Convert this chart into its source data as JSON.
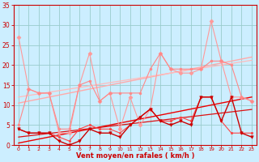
{
  "background_color": "#cceeff",
  "grid_color": "#99cccc",
  "xlabel": "Vent moyen/en rafales ( km/h )",
  "xlim": [
    -0.5,
    23.5
  ],
  "ylim": [
    0,
    35
  ],
  "yticks": [
    0,
    5,
    10,
    15,
    20,
    25,
    30,
    35
  ],
  "xticks": [
    0,
    1,
    2,
    3,
    4,
    5,
    6,
    7,
    8,
    9,
    10,
    11,
    12,
    13,
    14,
    15,
    16,
    17,
    18,
    19,
    20,
    21,
    22,
    23
  ],
  "lines": [
    {
      "x": [
        0,
        1,
        2,
        3,
        4,
        5,
        6,
        7,
        8,
        9,
        10,
        11,
        12,
        13,
        14,
        15,
        16,
        17,
        18,
        19,
        20,
        21,
        22,
        23
      ],
      "y": [
        27,
        14,
        13,
        13,
        3,
        3,
        15,
        23,
        11,
        13,
        4,
        12,
        5,
        9,
        23,
        19,
        18,
        18,
        19,
        31,
        21,
        12,
        12,
        11
      ],
      "color": "#ff9999",
      "lw": 0.8,
      "marker": "D",
      "ms": 2.5,
      "linestyle": "-",
      "zorder": 3
    },
    {
      "x": [
        0,
        1,
        2,
        3,
        4,
        5,
        6,
        7,
        8,
        9,
        10,
        11,
        12,
        13,
        14,
        15,
        16,
        17,
        18,
        19,
        20,
        21,
        22,
        23
      ],
      "y": [
        10.5,
        11.0,
        11.5,
        12.0,
        12.5,
        13.0,
        13.5,
        14.0,
        14.5,
        15.0,
        15.5,
        16.0,
        16.5,
        17.0,
        17.5,
        18.0,
        18.5,
        19.0,
        19.5,
        20.0,
        20.5,
        21.0,
        21.5,
        22.0
      ],
      "color": "#ffaaaa",
      "lw": 1.0,
      "marker": null,
      "ms": 0,
      "linestyle": "-",
      "zorder": 2
    },
    {
      "x": [
        0,
        1,
        2,
        3,
        4,
        5,
        6,
        7,
        8,
        9,
        10,
        11,
        12,
        13,
        14,
        15,
        16,
        17,
        18,
        19,
        20,
        21,
        22,
        23
      ],
      "y": [
        5,
        14,
        13,
        13,
        4,
        4,
        15,
        16,
        11,
        13,
        13,
        13,
        13,
        19,
        23,
        19,
        19,
        19,
        19,
        21,
        21,
        20,
        12,
        11
      ],
      "color": "#ff8888",
      "lw": 0.8,
      "marker": "o",
      "ms": 2,
      "linestyle": "-",
      "zorder": 3
    },
    {
      "x": [
        0,
        1,
        2,
        3,
        4,
        5,
        6,
        7,
        8,
        9,
        10,
        11,
        12,
        13,
        14,
        15,
        16,
        17,
        18,
        19,
        20,
        21,
        22,
        23
      ],
      "y": [
        12,
        12.4,
        12.8,
        13.2,
        13.6,
        14.0,
        14.4,
        14.8,
        15.2,
        15.6,
        16.0,
        16.4,
        16.8,
        17.2,
        17.6,
        18.0,
        18.4,
        18.8,
        19.2,
        19.6,
        20.0,
        20.4,
        20.8,
        21.2
      ],
      "color": "#ffbbbb",
      "lw": 0.9,
      "marker": null,
      "ms": 0,
      "linestyle": "-",
      "zorder": 2
    },
    {
      "x": [
        0,
        1,
        2,
        3,
        4,
        5,
        6,
        7,
        8,
        9,
        10,
        11,
        12,
        13,
        14,
        15,
        16,
        17,
        18,
        19,
        20,
        21,
        22,
        23
      ],
      "y": [
        4,
        3,
        3,
        3,
        1,
        0,
        1,
        4,
        3,
        3,
        2,
        5,
        7,
        9,
        6,
        5,
        6,
        5,
        12,
        12,
        6,
        12,
        3,
        2
      ],
      "color": "#cc0000",
      "lw": 1.0,
      "marker": "v",
      "ms": 2.5,
      "linestyle": "-",
      "zorder": 4
    },
    {
      "x": [
        0,
        1,
        2,
        3,
        4,
        5,
        6,
        7,
        8,
        9,
        10,
        11,
        12,
        13,
        14,
        15,
        16,
        17,
        18,
        19,
        20,
        21,
        22,
        23
      ],
      "y": [
        0.5,
        1.0,
        1.5,
        2.0,
        2.5,
        3.0,
        3.5,
        4.0,
        4.5,
        5.0,
        5.5,
        6.0,
        6.5,
        7.0,
        7.5,
        8.0,
        8.5,
        9.0,
        9.5,
        10.0,
        10.5,
        11.0,
        11.5,
        12.0
      ],
      "color": "#ee0000",
      "lw": 1.0,
      "marker": null,
      "ms": 0,
      "linestyle": "-",
      "zorder": 2
    },
    {
      "x": [
        0,
        1,
        2,
        3,
        4,
        5,
        6,
        7,
        8,
        9,
        10,
        11,
        12,
        13,
        14,
        15,
        16,
        17,
        18,
        19,
        20,
        21,
        22,
        23
      ],
      "y": [
        2,
        2.3,
        2.6,
        2.9,
        3.2,
        3.5,
        3.8,
        4.1,
        4.4,
        4.7,
        5.0,
        5.3,
        5.6,
        5.9,
        6.2,
        6.5,
        6.8,
        7.1,
        7.4,
        7.7,
        8.0,
        8.3,
        8.6,
        8.9
      ],
      "color": "#dd1111",
      "lw": 0.9,
      "marker": null,
      "ms": 0,
      "linestyle": "-",
      "zorder": 2
    },
    {
      "x": [
        0,
        1,
        2,
        3,
        4,
        5,
        6,
        7,
        8,
        9,
        10,
        11,
        12,
        13,
        14,
        15,
        16,
        17,
        18,
        19,
        20,
        21,
        22,
        23
      ],
      "y": [
        4,
        3,
        3,
        3,
        2,
        1,
        4,
        5,
        4,
        4,
        3,
        5,
        7,
        9,
        6,
        6,
        7,
        6,
        12,
        12,
        6,
        3,
        3,
        3
      ],
      "color": "#ff4444",
      "lw": 0.8,
      "marker": "s",
      "ms": 2,
      "linestyle": "-",
      "zorder": 3
    }
  ]
}
